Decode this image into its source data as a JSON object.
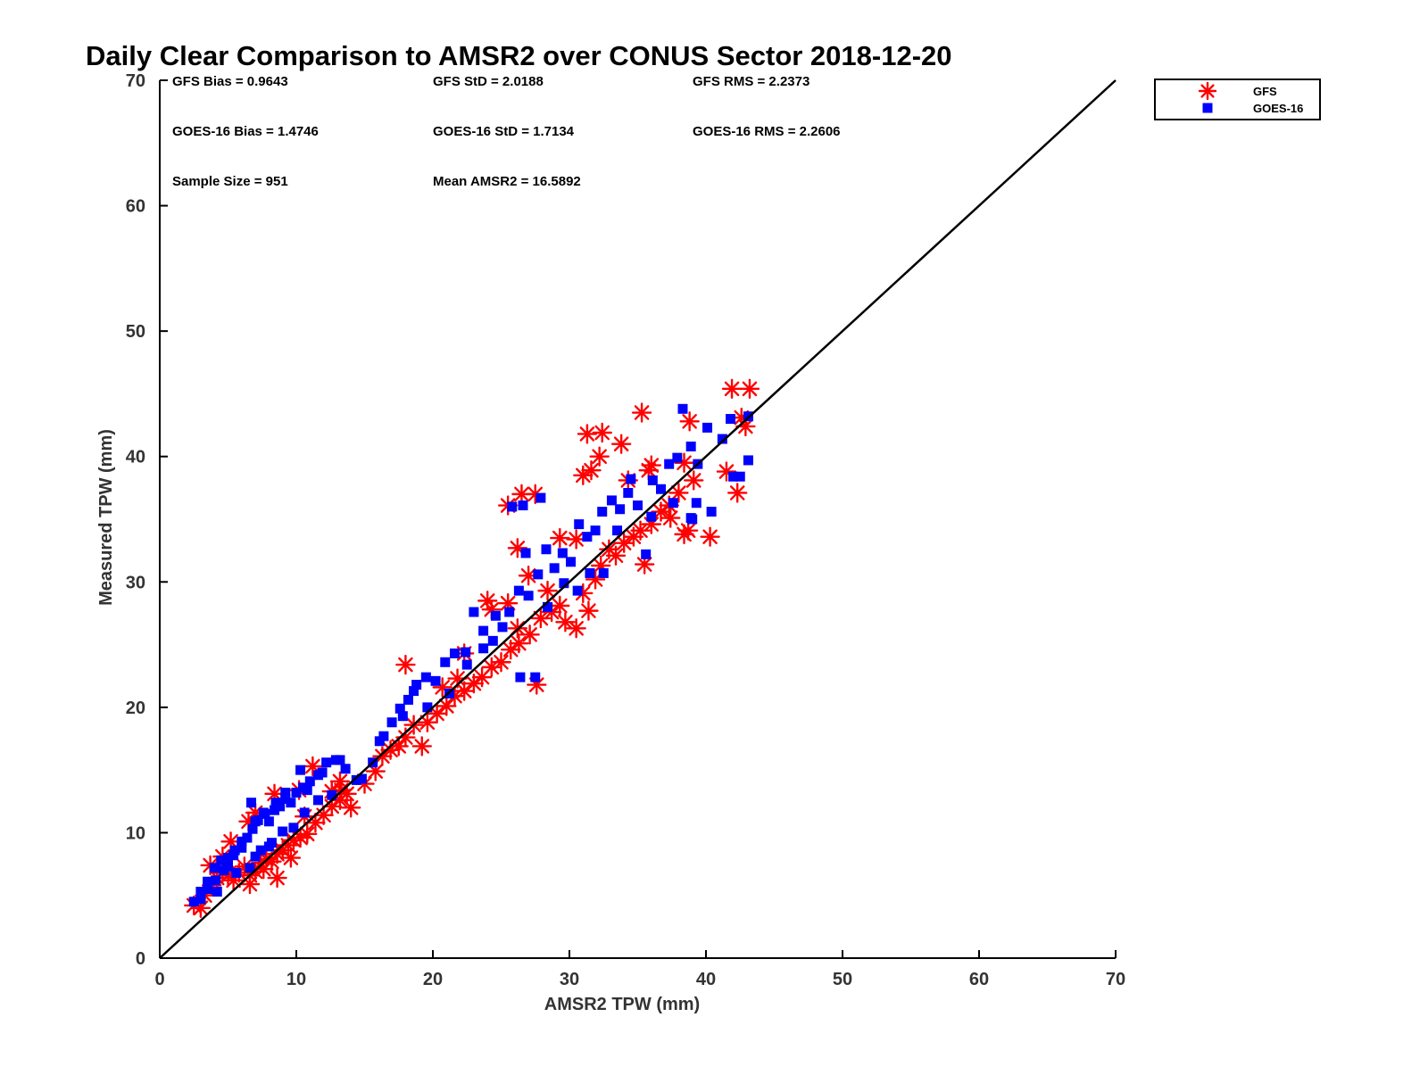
{
  "chart_data": {
    "type": "scatter",
    "title": "Daily Clear Comparison to AMSR2 over CONUS Sector 2018-12-20",
    "xlabel": "AMSR2 TPW (mm)",
    "ylabel": "Measured TPW (mm)",
    "xlim": [
      0,
      70
    ],
    "ylim": [
      0,
      70
    ],
    "xticks": [
      "0",
      "10",
      "20",
      "30",
      "40",
      "50",
      "60",
      "70"
    ],
    "yticks": [
      "0",
      "10",
      "20",
      "30",
      "40",
      "50",
      "60",
      "70"
    ],
    "grid": false,
    "legend_position": "top-right, outside axes",
    "reference_line": {
      "type": "1:1",
      "color": "#000000"
    },
    "stats": [
      [
        "GFS Bias = 0.9643",
        "GFS StD = 2.0188",
        "GFS RMS = 2.2373"
      ],
      [
        "GOES-16 Bias = 1.4746",
        "GOES-16 StD = 1.7134",
        "GOES-16 RMS = 2.2606"
      ],
      [
        "Sample Size = 951",
        "Mean AMSR2 = 16.5892"
      ]
    ],
    "series": [
      {
        "name": "GFS",
        "marker": "asterisk",
        "color": "#ff0000",
        "points": [
          [
            2.5,
            4.2
          ],
          [
            3.0,
            4.0
          ],
          [
            3.3,
            5.0
          ],
          [
            3.8,
            5.8
          ],
          [
            4.2,
            6.4
          ],
          [
            4.6,
            6.8
          ],
          [
            5.0,
            6.6
          ],
          [
            5.4,
            6.2
          ],
          [
            5.8,
            6.8
          ],
          [
            6.2,
            7.3
          ],
          [
            6.6,
            6.6
          ],
          [
            7.0,
            6.9
          ],
          [
            7.4,
            7.6
          ],
          [
            7.8,
            7.9
          ],
          [
            8.2,
            7.7
          ],
          [
            8.6,
            8.3
          ],
          [
            9.0,
            8.6
          ],
          [
            9.4,
            9.0
          ],
          [
            9.8,
            9.4
          ],
          [
            10.3,
            9.6
          ],
          [
            10.8,
            9.9
          ],
          [
            11.4,
            10.8
          ],
          [
            12.0,
            11.4
          ],
          [
            12.6,
            12.1
          ],
          [
            13.2,
            12.6
          ],
          [
            13.7,
            13.1
          ],
          [
            15.0,
            13.9
          ],
          [
            15.8,
            14.9
          ],
          [
            16.3,
            16.1
          ],
          [
            16.9,
            16.6
          ],
          [
            17.5,
            16.9
          ],
          [
            18.0,
            17.6
          ],
          [
            19.2,
            16.9
          ],
          [
            18.6,
            18.6
          ],
          [
            19.6,
            18.8
          ],
          [
            20.3,
            19.5
          ],
          [
            21.0,
            20.1
          ],
          [
            21.6,
            20.9
          ],
          [
            22.3,
            21.3
          ],
          [
            23.0,
            21.9
          ],
          [
            23.6,
            22.4
          ],
          [
            24.3,
            23.2
          ],
          [
            25.0,
            23.6
          ],
          [
            25.7,
            24.6
          ],
          [
            26.3,
            25.1
          ],
          [
            27.1,
            25.8
          ],
          [
            27.6,
            21.8
          ],
          [
            27.9,
            27.1
          ],
          [
            28.7,
            27.6
          ],
          [
            29.3,
            28.1
          ],
          [
            29.7,
            26.8
          ],
          [
            30.5,
            26.3
          ],
          [
            31.0,
            29.1
          ],
          [
            31.4,
            27.7
          ],
          [
            31.9,
            30.2
          ],
          [
            32.3,
            31.3
          ],
          [
            32.9,
            32.6
          ],
          [
            33.4,
            32.1
          ],
          [
            34.0,
            33.1
          ],
          [
            34.7,
            33.6
          ],
          [
            35.2,
            34.1
          ],
          [
            35.5,
            31.4
          ],
          [
            36.0,
            34.6
          ],
          [
            36.7,
            35.6
          ],
          [
            37.3,
            36.1
          ],
          [
            38.0,
            37.1
          ],
          [
            38.4,
            33.8
          ],
          [
            39.1,
            38.1
          ],
          [
            40.3,
            33.6
          ],
          [
            41.5,
            38.8
          ],
          [
            42.3,
            37.1
          ],
          [
            42.9,
            42.4
          ],
          [
            43.2,
            45.4
          ],
          [
            41.9,
            45.4
          ],
          [
            35.3,
            43.5
          ],
          [
            31.3,
            41.8
          ],
          [
            32.4,
            41.9
          ],
          [
            33.8,
            41.0
          ],
          [
            32.2,
            40.0
          ],
          [
            31.6,
            38.9
          ],
          [
            31.0,
            38.5
          ],
          [
            27.5,
            37.0
          ],
          [
            26.5,
            37.0
          ],
          [
            25.5,
            36.1
          ],
          [
            26.2,
            32.7
          ],
          [
            27.0,
            30.5
          ],
          [
            29.3,
            33.5
          ],
          [
            26.2,
            26.3
          ],
          [
            24.3,
            27.8
          ],
          [
            25.5,
            28.3
          ],
          [
            22.3,
            24.3
          ],
          [
            20.7,
            21.6
          ],
          [
            21.8,
            22.3
          ],
          [
            18.0,
            23.4
          ],
          [
            13.3,
            13.4
          ],
          [
            11.2,
            15.3
          ],
          [
            10.2,
            13.4
          ],
          [
            8.4,
            13.1
          ],
          [
            6.5,
            10.9
          ],
          [
            5.2,
            9.3
          ],
          [
            4.6,
            8.1
          ],
          [
            3.7,
            7.4
          ],
          [
            7.0,
            11.6
          ],
          [
            12.6,
            13.3
          ],
          [
            9.6,
            8.0
          ],
          [
            8.6,
            6.4
          ],
          [
            7.6,
            7.1
          ],
          [
            6.6,
            5.9
          ],
          [
            14.0,
            12.0
          ],
          [
            10.6,
            11.3
          ],
          [
            13.2,
            14.1
          ],
          [
            24.0,
            28.5
          ],
          [
            28.4,
            29.3
          ],
          [
            30.5,
            33.4
          ],
          [
            34.3,
            38.1
          ],
          [
            36.0,
            39.3
          ],
          [
            38.8,
            42.8
          ],
          [
            38.4,
            39.5
          ],
          [
            38.7,
            34.1
          ],
          [
            42.6,
            43.1
          ],
          [
            37.4,
            35.1
          ],
          [
            35.8,
            38.9
          ]
        ]
      },
      {
        "name": "GOES-16",
        "marker": "square",
        "color": "#0000ff",
        "points": [
          [
            2.5,
            4.5
          ],
          [
            3.0,
            5.3
          ],
          [
            3.5,
            6.1
          ],
          [
            4.0,
            7.2
          ],
          [
            4.5,
            7.8
          ],
          [
            5.0,
            8.0
          ],
          [
            5.5,
            8.6
          ],
          [
            6.0,
            8.8
          ],
          [
            6.4,
            9.6
          ],
          [
            6.8,
            10.3
          ],
          [
            7.2,
            11.0
          ],
          [
            7.6,
            11.6
          ],
          [
            8.0,
            10.9
          ],
          [
            8.4,
            11.8
          ],
          [
            8.8,
            12.1
          ],
          [
            9.2,
            12.7
          ],
          [
            9.6,
            12.4
          ],
          [
            10.0,
            13.2
          ],
          [
            10.5,
            13.6
          ],
          [
            11.0,
            14.1
          ],
          [
            11.6,
            14.6
          ],
          [
            12.2,
            15.6
          ],
          [
            12.9,
            15.8
          ],
          [
            13.6,
            15.1
          ],
          [
            14.8,
            14.3
          ],
          [
            15.6,
            15.6
          ],
          [
            16.4,
            17.7
          ],
          [
            17.0,
            18.8
          ],
          [
            17.6,
            19.9
          ],
          [
            18.2,
            20.6
          ],
          [
            18.8,
            21.8
          ],
          [
            19.5,
            22.4
          ],
          [
            20.2,
            22.1
          ],
          [
            20.9,
            23.6
          ],
          [
            21.6,
            24.3
          ],
          [
            22.4,
            24.4
          ],
          [
            23.0,
            27.6
          ],
          [
            23.7,
            26.1
          ],
          [
            24.4,
            25.3
          ],
          [
            25.1,
            26.4
          ],
          [
            25.6,
            27.6
          ],
          [
            26.3,
            29.3
          ],
          [
            27.0,
            28.9
          ],
          [
            27.5,
            22.4
          ],
          [
            26.4,
            22.4
          ],
          [
            27.7,
            30.6
          ],
          [
            28.3,
            32.6
          ],
          [
            28.9,
            31.1
          ],
          [
            29.5,
            32.3
          ],
          [
            30.1,
            31.6
          ],
          [
            30.7,
            34.6
          ],
          [
            31.3,
            33.6
          ],
          [
            31.9,
            34.1
          ],
          [
            32.4,
            35.6
          ],
          [
            33.1,
            36.5
          ],
          [
            33.7,
            35.8
          ],
          [
            34.3,
            37.1
          ],
          [
            35.0,
            36.1
          ],
          [
            35.6,
            32.2
          ],
          [
            36.1,
            38.1
          ],
          [
            36.7,
            37.4
          ],
          [
            37.3,
            39.4
          ],
          [
            37.9,
            39.9
          ],
          [
            38.3,
            43.8
          ],
          [
            38.9,
            40.8
          ],
          [
            39.4,
            39.4
          ],
          [
            40.1,
            42.3
          ],
          [
            40.4,
            35.6
          ],
          [
            41.2,
            41.4
          ],
          [
            41.8,
            43.0
          ],
          [
            42.5,
            38.4
          ],
          [
            43.1,
            43.2
          ],
          [
            43.1,
            39.7
          ],
          [
            42.0,
            38.4
          ],
          [
            39.3,
            36.3
          ],
          [
            38.9,
            35.1
          ],
          [
            39.0,
            35.0
          ],
          [
            37.6,
            36.3
          ],
          [
            36.0,
            35.2
          ],
          [
            34.5,
            38.2
          ],
          [
            33.5,
            34.1
          ],
          [
            32.5,
            30.7
          ],
          [
            31.5,
            30.7
          ],
          [
            30.6,
            29.3
          ],
          [
            29.6,
            29.9
          ],
          [
            28.4,
            28.0
          ],
          [
            26.6,
            36.1
          ],
          [
            25.8,
            36.0
          ],
          [
            27.9,
            36.7
          ],
          [
            26.8,
            32.3
          ],
          [
            24.6,
            27.3
          ],
          [
            23.7,
            24.7
          ],
          [
            22.5,
            23.4
          ],
          [
            21.2,
            21.1
          ],
          [
            19.6,
            20.0
          ],
          [
            18.6,
            21.3
          ],
          [
            17.8,
            19.3
          ],
          [
            16.1,
            17.3
          ],
          [
            14.4,
            14.2
          ],
          [
            13.2,
            15.8
          ],
          [
            11.9,
            14.8
          ],
          [
            10.8,
            13.4
          ],
          [
            10.3,
            15.0
          ],
          [
            9.2,
            13.2
          ],
          [
            8.5,
            12.4
          ],
          [
            7.7,
            11.5
          ],
          [
            7.0,
            10.9
          ],
          [
            6.7,
            12.4
          ],
          [
            6.0,
            9.3
          ],
          [
            5.4,
            8.2
          ],
          [
            4.7,
            7.0
          ],
          [
            4.1,
            6.2
          ],
          [
            3.5,
            5.5
          ],
          [
            3.0,
            4.7
          ],
          [
            5.6,
            6.8
          ],
          [
            6.6,
            7.2
          ],
          [
            7.4,
            8.6
          ],
          [
            8.2,
            9.2
          ],
          [
            9.0,
            10.1
          ],
          [
            9.8,
            10.4
          ],
          [
            10.6,
            11.6
          ],
          [
            11.6,
            12.6
          ],
          [
            8.0,
            8.9
          ],
          [
            7.0,
            8.1
          ],
          [
            5.0,
            7.3
          ],
          [
            4.2,
            5.3
          ],
          [
            12.6,
            13.0
          ]
        ]
      }
    ]
  }
}
